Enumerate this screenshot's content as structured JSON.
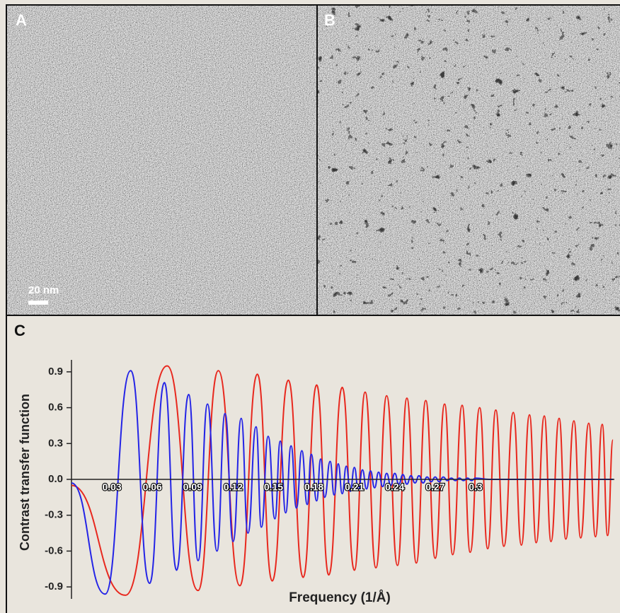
{
  "figure": {
    "panel_a": "A",
    "panel_b": "B",
    "scale_bar": "20 nm",
    "panel_c": "C"
  },
  "chart_data": {
    "type": "line",
    "ylabel": "Contrast transfer function",
    "xlabel": "Frequency (1/Å)",
    "xlim": [
      0,
      0.403
    ],
    "ylim": [
      -1.0,
      1.0
    ],
    "xticks": [
      0.03,
      0.06,
      0.09,
      0.12,
      0.15,
      0.18,
      0.21,
      0.24,
      0.27,
      0.3
    ],
    "yticks": [
      0.9,
      0.6,
      0.3,
      {
        "value": 0,
        "label": "0.0"
      },
      -0.3,
      -0.6,
      -0.9
    ],
    "series": [
      {
        "color": "#e8281e",
        "x": [
          0,
          0.04,
          0.071,
          0.094,
          0.109,
          0.125,
          0.138,
          0.149,
          0.161,
          0.172,
          0.182,
          0.191,
          0.201,
          0.21,
          0.218,
          0.226,
          0.234,
          0.242,
          0.249,
          0.256,
          0.263,
          0.27,
          0.277,
          0.283,
          0.29,
          0.296,
          0.303,
          0.309,
          0.315,
          0.321,
          0.328,
          0.334,
          0.34,
          0.345,
          0.351,
          0.356,
          0.362,
          0.367,
          0.373,
          0.378,
          0.384,
          0.389,
          0.394,
          0.398,
          0.402
        ],
        "values": [
          -0.05,
          -0.97,
          0.95,
          -0.93,
          0.91,
          -0.89,
          0.88,
          -0.85,
          0.83,
          -0.82,
          0.79,
          -0.8,
          0.77,
          -0.76,
          0.73,
          -0.74,
          0.7,
          -0.72,
          0.68,
          -0.7,
          0.66,
          -0.66,
          0.63,
          -0.63,
          0.62,
          -0.61,
          0.6,
          -0.58,
          0.58,
          -0.56,
          0.56,
          -0.55,
          0.54,
          -0.53,
          0.53,
          -0.52,
          0.51,
          -0.5,
          0.49,
          -0.49,
          0.47,
          -0.48,
          0.46,
          -0.47,
          0.33
        ]
      },
      {
        "color": "#2424e6",
        "x": [
          0,
          0.025,
          0.044,
          0.058,
          0.069,
          0.078,
          0.087,
          0.094,
          0.101,
          0.108,
          0.114,
          0.12,
          0.126,
          0.131,
          0.137,
          0.141,
          0.146,
          0.151,
          0.155,
          0.159,
          0.163,
          0.167,
          0.171,
          0.175,
          0.178,
          0.182,
          0.185,
          0.188,
          0.192,
          0.195,
          0.198,
          0.201,
          0.204,
          0.207,
          0.21,
          0.213,
          0.216,
          0.219,
          0.222,
          0.225,
          0.228,
          0.231,
          0.234,
          0.237,
          0.24,
          0.243,
          0.246,
          0.249,
          0.252,
          0.255,
          0.258,
          0.261,
          0.264,
          0.267,
          0.27,
          0.273,
          0.276,
          0.279,
          0.282,
          0.285,
          0.288,
          0.291,
          0.294,
          0.297,
          0.3,
          0.31,
          0.402
        ],
        "values": [
          -0.03,
          -0.96,
          0.91,
          -0.87,
          0.81,
          -0.76,
          0.71,
          -0.68,
          0.63,
          -0.6,
          0.55,
          -0.52,
          0.51,
          -0.45,
          0.44,
          -0.4,
          0.36,
          -0.33,
          0.32,
          -0.28,
          0.28,
          -0.24,
          0.24,
          -0.21,
          0.21,
          -0.18,
          0.17,
          -0.15,
          0.15,
          -0.13,
          0.13,
          -0.12,
          0.11,
          -0.1,
          0.1,
          -0.09,
          0.08,
          -0.08,
          0.07,
          -0.07,
          0.06,
          -0.06,
          0.05,
          -0.05,
          0.05,
          -0.04,
          0.04,
          -0.04,
          0.03,
          -0.03,
          0.03,
          -0.03,
          0.02,
          -0.02,
          0.02,
          -0.02,
          0.02,
          -0.01,
          0.01,
          -0.01,
          0.01,
          -0.01,
          0.01,
          -0.01,
          0.01,
          0,
          0
        ]
      }
    ]
  }
}
